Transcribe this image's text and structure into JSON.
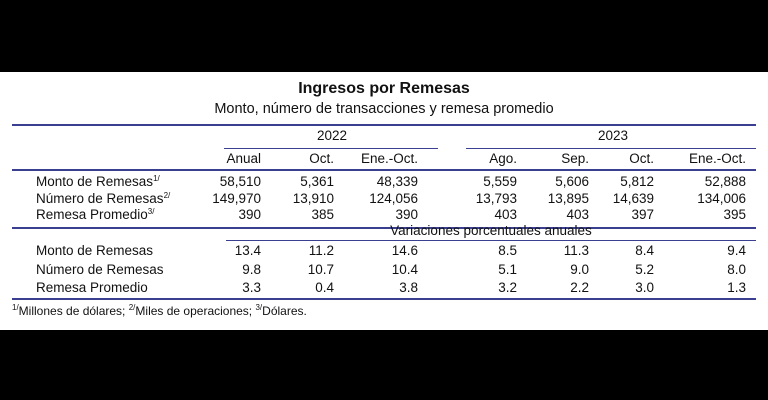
{
  "title": "Ingresos por Remesas",
  "subtitle": "Monto, número de transacciones y remesa promedio",
  "years": [
    "2022",
    "2023"
  ],
  "columns": [
    "Anual",
    "Oct.",
    "Ene.-Oct.",
    "Ago.",
    "Sep.",
    "Oct.",
    "Ene.-Oct."
  ],
  "section_label": "Variaciones porcentuales anuales",
  "rows_levels": [
    {
      "label": "Monto de Remesas",
      "sup": "1/",
      "values": [
        "58,510",
        "5,361",
        "48,339",
        "5,559",
        "5,606",
        "5,812",
        "52,888"
      ]
    },
    {
      "label": "Número de Remesas",
      "sup": "2/",
      "values": [
        "149,970",
        "13,910",
        "124,056",
        "13,793",
        "13,895",
        "14,639",
        "134,006"
      ]
    },
    {
      "label": "Remesa Promedio",
      "sup": "3/",
      "values": [
        "390",
        "385",
        "390",
        "403",
        "403",
        "397",
        "395"
      ]
    }
  ],
  "rows_changes": [
    {
      "label": "Monto de Remesas",
      "values": [
        "13.4",
        "11.2",
        "14.6",
        "8.5",
        "11.3",
        "8.4",
        "9.4"
      ]
    },
    {
      "label": "Número de Remesas",
      "values": [
        "9.8",
        "10.7",
        "10.4",
        "5.1",
        "9.0",
        "5.2",
        "8.0"
      ]
    },
    {
      "label": "Remesa Promedio",
      "values": [
        "3.3",
        "0.4",
        "3.8",
        "3.2",
        "2.2",
        "3.0",
        "1.3"
      ]
    }
  ],
  "footnotes": [
    {
      "sup": "1/",
      "text": "Millones de dólares;"
    },
    {
      "sup": "2/",
      "text": "Miles de operaciones;"
    },
    {
      "sup": "3/",
      "text": "Dólares."
    }
  ]
}
